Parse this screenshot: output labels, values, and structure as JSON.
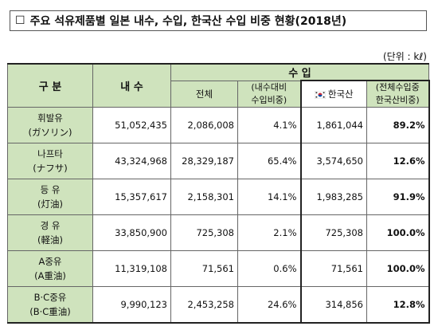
{
  "title": {
    "box_mark": "☐",
    "text": "주요 석유제품별 일본 내수, 수입, 한국산 수입 비중 현황(2018년)"
  },
  "unit": "(단위 : kℓ)",
  "headers": {
    "category": "구 분",
    "domestic": "내 수",
    "imports": "수 입",
    "total": "전체",
    "ratio_line1": "(내수대비",
    "ratio_line2": "수입비중)",
    "korea": "한국산",
    "share_line1": "(전체수입중",
    "share_line2": "한국산비중)"
  },
  "rows": [
    {
      "name": "휘발유",
      "sub": "(ガソリン)",
      "domestic": "51,052,435",
      "total": "2,086,008",
      "ratio": "4.1%",
      "korea": "1,861,044",
      "share": "89.2%"
    },
    {
      "name": "나프타",
      "sub": "(ナフサ)",
      "domestic": "43,324,968",
      "total": "28,329,187",
      "ratio": "65.4%",
      "korea": "3,574,650",
      "share": "12.6%"
    },
    {
      "name": "등 유",
      "sub": "(灯油)",
      "domestic": "15,357,617",
      "total": "2,158,301",
      "ratio": "14.1%",
      "korea": "1,983,285",
      "share": "91.9%"
    },
    {
      "name": "경 유",
      "sub": "(軽油)",
      "domestic": "33,850,900",
      "total": "725,308",
      "ratio": "2.1%",
      "korea": "725,308",
      "share": "100.0%"
    },
    {
      "name": "A중유",
      "sub": "(A重油)",
      "domestic": "11,319,108",
      "total": "71,561",
      "ratio": "0.6%",
      "korea": "71,561",
      "share": "100.0%"
    },
    {
      "name": "B·C중유",
      "sub": "(B·C重油)",
      "domestic": "9,990,123",
      "total": "2,453,258",
      "ratio": "24.6%",
      "korea": "314,856",
      "share": "12.8%"
    }
  ]
}
